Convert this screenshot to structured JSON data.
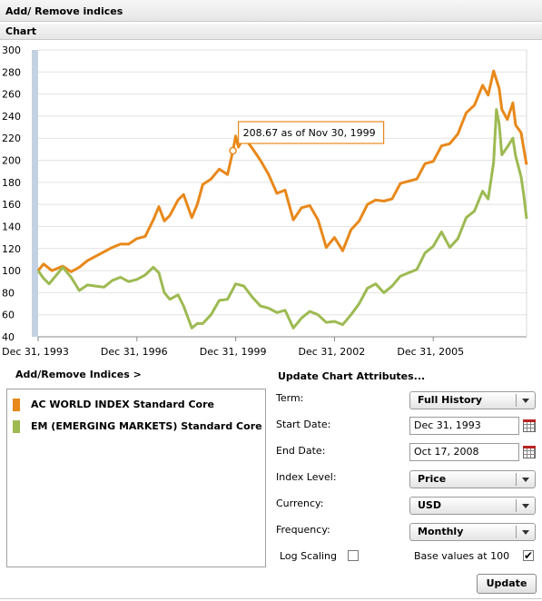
{
  "header": {
    "title": "Add/ Remove indices",
    "chart_section": "Chart"
  },
  "chart_data": {
    "type": "line",
    "x_tick_labels": [
      "Dec 31, 1993",
      "Dec 31, 1996",
      "Dec 31, 1999",
      "Dec 31, 2002",
      "Dec 31, 2005"
    ],
    "y_tick_labels": [
      "40",
      "60",
      "80",
      "100",
      "120",
      "140",
      "160",
      "180",
      "200",
      "220",
      "240",
      "260",
      "280",
      "300"
    ],
    "ylim": [
      40,
      300
    ],
    "x_range": [
      "1993-12",
      "2008-10"
    ],
    "grid": true,
    "tooltip": {
      "text": "208.67 as of Nov 30, 1999",
      "x": "1999-11",
      "y": 208.67
    },
    "series": [
      {
        "name": "AC WORLD INDEX Standard Core",
        "color": "#e8881a",
        "points": [
          [
            "1993-12",
            100
          ],
          [
            "1994-02",
            106
          ],
          [
            "1994-05",
            100
          ],
          [
            "1994-09",
            104
          ],
          [
            "1994-12",
            99
          ],
          [
            "1995-03",
            103
          ],
          [
            "1995-06",
            109
          ],
          [
            "1995-12",
            117
          ],
          [
            "1996-03",
            121
          ],
          [
            "1996-06",
            124
          ],
          [
            "1996-09",
            124
          ],
          [
            "1996-12",
            129
          ],
          [
            "1997-03",
            131
          ],
          [
            "1997-06",
            146
          ],
          [
            "1997-08",
            158
          ],
          [
            "1997-10",
            145
          ],
          [
            "1997-12",
            150
          ],
          [
            "1998-03",
            164
          ],
          [
            "1998-05",
            169
          ],
          [
            "1998-08",
            148
          ],
          [
            "1998-10",
            160
          ],
          [
            "1998-12",
            178
          ],
          [
            "1999-03",
            183
          ],
          [
            "1999-06",
            192
          ],
          [
            "1999-09",
            187
          ],
          [
            "1999-11",
            208.67
          ],
          [
            "1999-12",
            222
          ],
          [
            "2000-01",
            212
          ],
          [
            "2000-03",
            221
          ],
          [
            "2000-06",
            211
          ],
          [
            "2000-09",
            200
          ],
          [
            "2000-12",
            187
          ],
          [
            "2001-03",
            170
          ],
          [
            "2001-06",
            173
          ],
          [
            "2001-09",
            146
          ],
          [
            "2001-12",
            157
          ],
          [
            "2002-03",
            159
          ],
          [
            "2002-06",
            146
          ],
          [
            "2002-09",
            121
          ],
          [
            "2002-12",
            130
          ],
          [
            "2003-03",
            118
          ],
          [
            "2003-06",
            137
          ],
          [
            "2003-09",
            145
          ],
          [
            "2003-12",
            160
          ],
          [
            "2004-03",
            164
          ],
          [
            "2004-06",
            163
          ],
          [
            "2004-09",
            165
          ],
          [
            "2004-12",
            179
          ],
          [
            "2005-03",
            181
          ],
          [
            "2005-06",
            183
          ],
          [
            "2005-09",
            197
          ],
          [
            "2005-12",
            199
          ],
          [
            "2006-03",
            213
          ],
          [
            "2006-06",
            215
          ],
          [
            "2006-09",
            224
          ],
          [
            "2006-12",
            243
          ],
          [
            "2007-03",
            250
          ],
          [
            "2007-06",
            268
          ],
          [
            "2007-08",
            259
          ],
          [
            "2007-10",
            281
          ],
          [
            "2007-12",
            265
          ],
          [
            "2008-01",
            246
          ],
          [
            "2008-03",
            237
          ],
          [
            "2008-05",
            252
          ],
          [
            "2008-06",
            232
          ],
          [
            "2008-08",
            225
          ],
          [
            "2008-09",
            210
          ],
          [
            "2008-10",
            196
          ]
        ]
      },
      {
        "name": "EM (EMERGING MARKETS) Standard Core",
        "color": "#9dba52",
        "points": [
          [
            "1993-12",
            100
          ],
          [
            "1994-02",
            93
          ],
          [
            "1994-04",
            88
          ],
          [
            "1994-06",
            94
          ],
          [
            "1994-09",
            103
          ],
          [
            "1994-12",
            94
          ],
          [
            "1995-03",
            82
          ],
          [
            "1995-06",
            87
          ],
          [
            "1995-09",
            86
          ],
          [
            "1995-12",
            85
          ],
          [
            "1996-03",
            91
          ],
          [
            "1996-06",
            94
          ],
          [
            "1996-09",
            90
          ],
          [
            "1996-12",
            92
          ],
          [
            "1997-03",
            96
          ],
          [
            "1997-06",
            103
          ],
          [
            "1997-08",
            98
          ],
          [
            "1997-10",
            80
          ],
          [
            "1997-12",
            74
          ],
          [
            "1998-03",
            78
          ],
          [
            "1998-05",
            68
          ],
          [
            "1998-08",
            48
          ],
          [
            "1998-10",
            52
          ],
          [
            "1998-12",
            52
          ],
          [
            "1999-03",
            60
          ],
          [
            "1999-06",
            73
          ],
          [
            "1999-09",
            74
          ],
          [
            "1999-12",
            88
          ],
          [
            "2000-03",
            86
          ],
          [
            "2000-06",
            76
          ],
          [
            "2000-09",
            68
          ],
          [
            "2000-12",
            66
          ],
          [
            "2001-03",
            62
          ],
          [
            "2001-06",
            64
          ],
          [
            "2001-09",
            48
          ],
          [
            "2001-12",
            57
          ],
          [
            "2002-03",
            63
          ],
          [
            "2002-06",
            60
          ],
          [
            "2002-09",
            53
          ],
          [
            "2002-12",
            54
          ],
          [
            "2003-03",
            51
          ],
          [
            "2003-06",
            60
          ],
          [
            "2003-09",
            70
          ],
          [
            "2003-12",
            84
          ],
          [
            "2004-03",
            88
          ],
          [
            "2004-06",
            80
          ],
          [
            "2004-09",
            86
          ],
          [
            "2004-12",
            95
          ],
          [
            "2005-03",
            98
          ],
          [
            "2005-06",
            101
          ],
          [
            "2005-09",
            116
          ],
          [
            "2005-12",
            122
          ],
          [
            "2006-03",
            135
          ],
          [
            "2006-06",
            121
          ],
          [
            "2006-09",
            129
          ],
          [
            "2006-12",
            148
          ],
          [
            "2007-03",
            154
          ],
          [
            "2007-06",
            172
          ],
          [
            "2007-08",
            165
          ],
          [
            "2007-10",
            198
          ],
          [
            "2007-11",
            246
          ],
          [
            "2007-12",
            233
          ],
          [
            "2008-01",
            205
          ],
          [
            "2008-03",
            212
          ],
          [
            "2008-05",
            220
          ],
          [
            "2008-06",
            204
          ],
          [
            "2008-08",
            185
          ],
          [
            "2008-09",
            168
          ],
          [
            "2008-10",
            147
          ]
        ]
      }
    ]
  },
  "left_panel": {
    "title": "Add/Remove Indices >",
    "legend": [
      {
        "label": "AC WORLD INDEX Standard Core",
        "color": "#e8881a"
      },
      {
        "label": "EM (EMERGING MARKETS) Standard Core",
        "color": "#9dba52"
      }
    ]
  },
  "attributes": {
    "title": "Update Chart Attributes...",
    "term_label": "Term:",
    "term_value": "Full History",
    "start_label": "Start Date:",
    "start_value": "Dec 31, 1993",
    "end_label": "End Date:",
    "end_value": "Oct 17, 2008",
    "level_label": "Index Level:",
    "level_value": "Price",
    "currency_label": "Currency:",
    "currency_value": "USD",
    "frequency_label": "Frequency:",
    "frequency_value": "Monthly",
    "log_label": "Log Scaling",
    "log_checked": false,
    "base_label": "Base values at 100",
    "base_checked": true,
    "base_check_glyph": "✔",
    "update_label": "Update"
  }
}
